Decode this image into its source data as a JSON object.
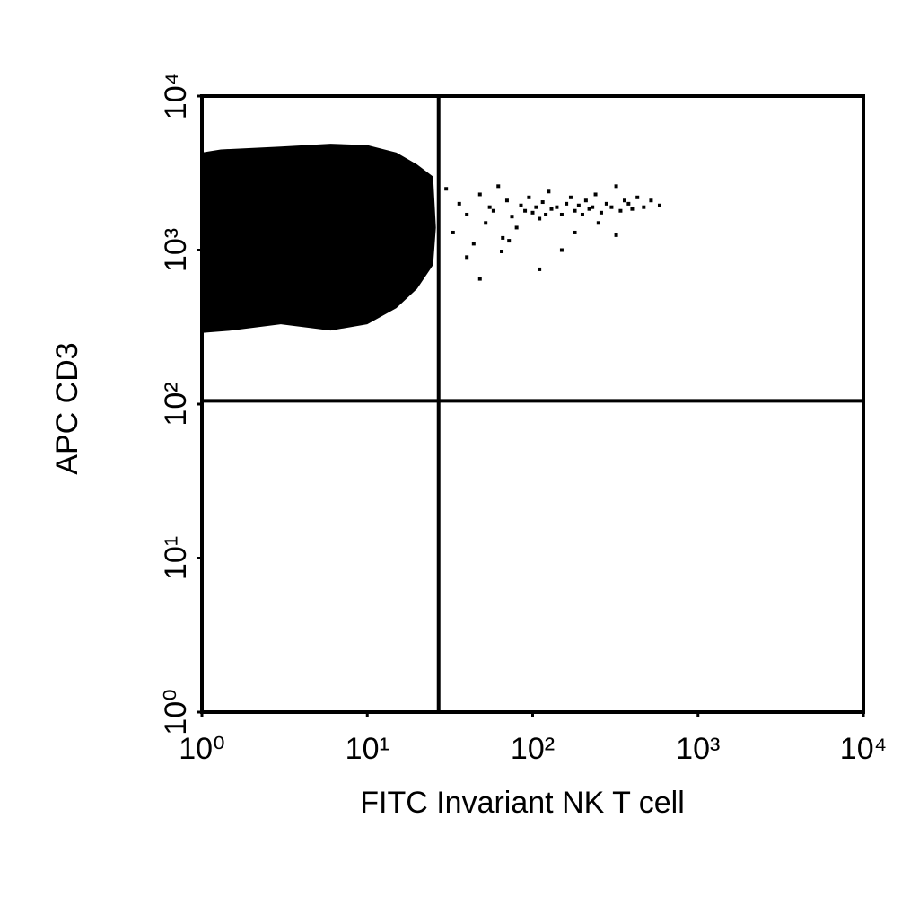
{
  "chart_data": {
    "type": "scatter",
    "xlabel": "FITC Invariant NK T cell",
    "ylabel": "APC CD3",
    "xlim": [
      1,
      10000
    ],
    "ylim": [
      1,
      10000
    ],
    "log_scale": true,
    "xticks": [
      {
        "value": 1,
        "label": "10⁰"
      },
      {
        "value": 10,
        "label": "10¹"
      },
      {
        "value": 100,
        "label": "10²"
      },
      {
        "value": 1000,
        "label": "10³"
      },
      {
        "value": 10000,
        "label": "10⁴"
      }
    ],
    "yticks": [
      {
        "value": 1,
        "label": "10⁰"
      },
      {
        "value": 10,
        "label": "10¹"
      },
      {
        "value": 100,
        "label": "10²"
      },
      {
        "value": 1000,
        "label": "10³"
      },
      {
        "value": 10000,
        "label": "10⁴"
      }
    ],
    "gates": {
      "x": 27,
      "y": 105
    },
    "color": "#000000",
    "density_region": {
      "x": [
        1,
        1.3,
        3,
        6,
        10,
        15,
        20,
        25,
        26,
        25,
        20,
        15,
        10,
        6,
        3,
        1.5,
        1
      ],
      "y": [
        4300,
        4500,
        4700,
        4900,
        4800,
        4300,
        3600,
        3000,
        1400,
        800,
        560,
        420,
        330,
        300,
        330,
        300,
        290
      ]
    },
    "x": [
      30,
      33,
      36,
      40,
      44,
      48,
      52,
      55,
      58,
      62,
      66,
      70,
      75,
      80,
      85,
      90,
      95,
      100,
      105,
      110,
      115,
      120,
      125,
      130,
      140,
      150,
      160,
      170,
      180,
      190,
      200,
      210,
      220,
      230,
      240,
      260,
      280,
      300,
      320,
      340,
      360,
      380,
      400,
      430,
      470,
      520,
      586,
      65,
      72,
      110,
      150,
      180,
      250,
      320,
      40,
      48
    ],
    "y": [
      2500,
      1300,
      2000,
      1700,
      1100,
      2300,
      1500,
      1900,
      1800,
      2600,
      1200,
      2100,
      1650,
      1400,
      1950,
      1800,
      2200,
      1750,
      1900,
      1600,
      2050,
      1700,
      2400,
      1850,
      1900,
      1700,
      2000,
      2200,
      1800,
      1950,
      1700,
      2100,
      1850,
      1900,
      2300,
      1750,
      2000,
      1900,
      2600,
      1800,
      2100,
      2000,
      1850,
      2200,
      1900,
      2100,
      1950,
      980,
      1150,
      750,
      1000,
      1300,
      1500,
      1250,
      900,
      650
    ]
  }
}
